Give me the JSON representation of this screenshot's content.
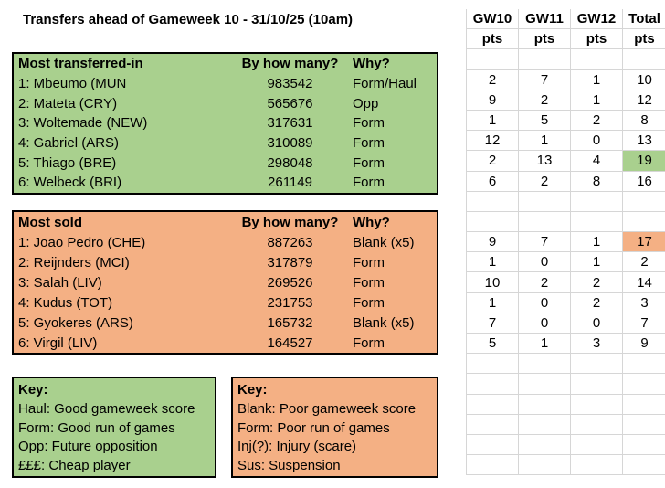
{
  "title": "Transfers ahead of Gameweek 10 - 31/10/25 (10am)",
  "colors": {
    "green_fill": "#A9D08E",
    "orange_fill": "#F4B084",
    "gridline": "#d6d6d6",
    "border": "#000000"
  },
  "pts_grid": {
    "col_headers": [
      "GW10",
      "GW11",
      "GW12",
      "Total"
    ],
    "unit_label": "pts",
    "total_rows": 23,
    "green_start_row": 3,
    "orange_start_row": 11
  },
  "sections": {
    "in": {
      "header": "Most transferred-in",
      "col2": "By how many?",
      "col3": "Why?",
      "rows": [
        {
          "name": "1: Mbeumo (MUN",
          "count": "983542",
          "why": "Form/Haul",
          "pts": [
            "2",
            "7",
            "1",
            "10"
          ],
          "hl": false
        },
        {
          "name": "2: Mateta (CRY)",
          "count": "565676",
          "why": "Opp",
          "pts": [
            "9",
            "2",
            "1",
            "12"
          ],
          "hl": false
        },
        {
          "name": "3: Woltemade (NEW)",
          "count": "317631",
          "why": "Form",
          "pts": [
            "1",
            "5",
            "2",
            "8"
          ],
          "hl": false
        },
        {
          "name": "4: Gabriel (ARS)",
          "count": "310089",
          "why": "Form",
          "pts": [
            "12",
            "1",
            "0",
            "13"
          ],
          "hl": false
        },
        {
          "name": "5: Thiago (BRE)",
          "count": "298048",
          "why": "Form",
          "pts": [
            "2",
            "13",
            "4",
            "19"
          ],
          "hl": true
        },
        {
          "name": "6: Welbeck (BRI)",
          "count": "261149",
          "why": "Form",
          "pts": [
            "6",
            "2",
            "8",
            "16"
          ],
          "hl": false
        }
      ]
    },
    "out": {
      "header": "Most sold",
      "col2": "By how many?",
      "col3": "Why?",
      "rows": [
        {
          "name": "1: Joao Pedro (CHE)",
          "count": "887263",
          "why": "Blank (x5)",
          "pts": [
            "9",
            "7",
            "1",
            "17"
          ],
          "hl": true
        },
        {
          "name": "2: Reijnders (MCI)",
          "count": "317879",
          "why": "Form",
          "pts": [
            "1",
            "0",
            "1",
            "2"
          ],
          "hl": false
        },
        {
          "name": "3: Salah (LIV)",
          "count": "269526",
          "why": "Form",
          "pts": [
            "10",
            "2",
            "2",
            "14"
          ],
          "hl": false
        },
        {
          "name": "4: Kudus (TOT)",
          "count": "231753",
          "why": "Form",
          "pts": [
            "1",
            "0",
            "2",
            "3"
          ],
          "hl": false
        },
        {
          "name": "5: Gyokeres (ARS)",
          "count": "165732",
          "why": "Blank (x5)",
          "pts": [
            "7",
            "0",
            "0",
            "7"
          ],
          "hl": false
        },
        {
          "name": "6: Virgil (LIV)",
          "count": "164527",
          "why": "Form",
          "pts": [
            "5",
            "1",
            "3",
            "9"
          ],
          "hl": false
        }
      ]
    }
  },
  "keys": {
    "green": {
      "title": "Key:",
      "lines": [
        "Haul: Good gameweek score",
        "Form: Good run of games",
        "Opp: Future opposition",
        "£££: Cheap player"
      ]
    },
    "orange": {
      "title": "Key:",
      "lines": [
        "Blank: Poor gameweek score",
        "Form: Poor run of games",
        "Inj(?): Injury (scare)",
        "Sus: Suspension"
      ]
    }
  }
}
